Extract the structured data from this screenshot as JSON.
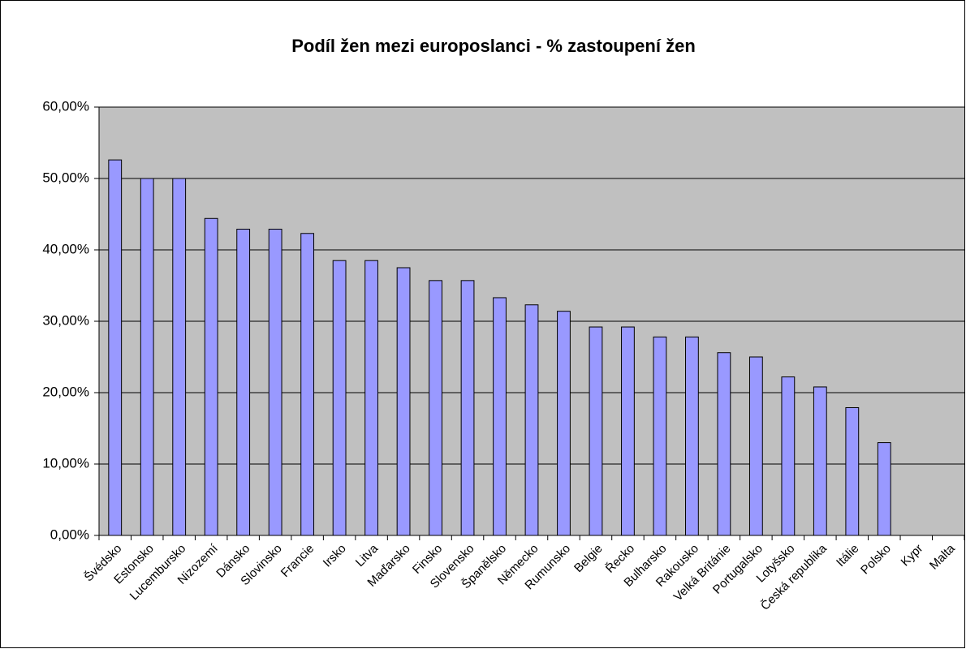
{
  "chart_data": {
    "type": "bar",
    "title": "Podíl žen mezi europoslanci - % zastoupení žen",
    "categories": [
      "Švédsko",
      "Estonsko",
      "Lucembursko",
      "Nizozemí",
      "Dánsko",
      "Slovinsko",
      "Francie",
      "Irsko",
      "Litva",
      "Maďarsko",
      "Finsko",
      "Slovensko",
      "Španělsko",
      "Německo",
      "Rumunsko",
      "Belgie",
      "Řecko",
      "Bulharsko",
      "Rakousko",
      "Velká Británie",
      "Portugalsko",
      "Lotyšsko",
      "Česká republika",
      "Itálie",
      "Polsko",
      "Kypr",
      "Malta"
    ],
    "values": [
      52.6,
      50,
      50,
      44.4,
      42.9,
      42.9,
      42.3,
      38.5,
      38.5,
      37.5,
      35.7,
      35.7,
      33.3,
      32.3,
      31.4,
      29.2,
      29.2,
      27.8,
      27.8,
      25.6,
      25,
      22.2,
      20.8,
      17.9,
      13,
      0,
      0
    ],
    "color": "#9999ff",
    "ylim": [
      0,
      60
    ],
    "yticks": [
      {
        "value": 0,
        "label": "0,00%"
      },
      {
        "value": 10,
        "label": "10,00%"
      },
      {
        "value": 20,
        "label": "20,00%"
      },
      {
        "value": 30,
        "label": "30,00%"
      },
      {
        "value": 40,
        "label": "40,00%"
      },
      {
        "value": 50,
        "label": "50,00%"
      },
      {
        "value": 60,
        "label": "60,00%"
      }
    ],
    "grid": true
  }
}
